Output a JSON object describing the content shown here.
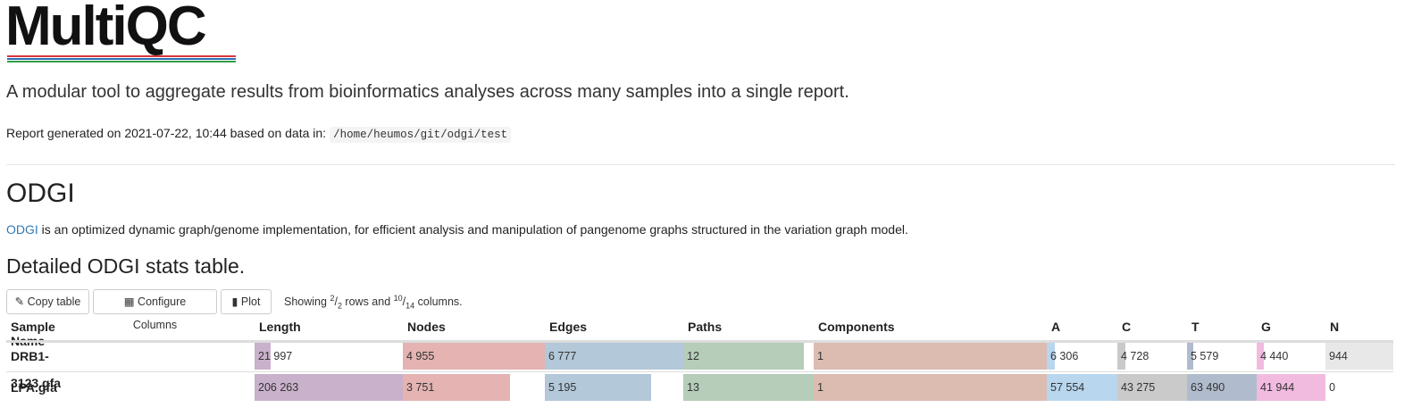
{
  "logo": "MultiQC",
  "intro": "A modular tool to aggregate results from bioinformatics analyses across many samples into a single report.",
  "report": {
    "prefix": "Report generated on 2021-07-22, 10:44 based on data in:",
    "path": "/home/heumos/git/odgi/test"
  },
  "section": {
    "title": "ODGI",
    "link": "ODGI",
    "description": " is an optimized dynamic graph/genome implementation, for efficient analysis and manipulation of pangenome graphs structured in the variation graph model.",
    "table_title": "Detailed ODGI stats table."
  },
  "toolbar": {
    "buttons": [
      "Copy table",
      "Configure Columns",
      "Plot"
    ],
    "showing": {
      "before": "Showing ",
      "rows_shown": "2",
      "rows_total": "2",
      "middle": " rows and ",
      "cols_shown": "10",
      "cols_total": "14",
      "after": " columns."
    }
  },
  "table": {
    "columns": [
      {
        "name": "Sample Name"
      },
      {
        "name": "Length",
        "color": "#c9b1cb"
      },
      {
        "name": "Nodes",
        "color": "#e4b3b2"
      },
      {
        "name": "Edges",
        "color": "#b3c8d9"
      },
      {
        "name": "Paths",
        "color": "#b5cdb9"
      },
      {
        "name": "Components",
        "color": "#dcbbb0"
      },
      {
        "name": "A",
        "color": "#b8d6ee"
      },
      {
        "name": "C",
        "color": "#cacaca"
      },
      {
        "name": "T",
        "color": "#b0bccd"
      },
      {
        "name": "G",
        "color": "#f1bbe0"
      },
      {
        "name": "N",
        "color": "#e8e8e8"
      }
    ],
    "rows": [
      {
        "name": "DRB1-3123.gfa",
        "cells": [
          {
            "value": 21997,
            "label": "21 997"
          },
          {
            "value": 4955,
            "label": "4 955"
          },
          {
            "value": 6777,
            "label": "6 777"
          },
          12,
          1,
          {
            "value": 6306,
            "label": "6 306"
          },
          {
            "value": 4728,
            "label": "4 728"
          },
          {
            "value": 5579,
            "label": "5 579"
          },
          {
            "value": 4440,
            "label": "4 440"
          },
          944
        ]
      },
      {
        "name": "LPA.gfa",
        "cells": [
          {
            "value": 206263,
            "label": "206 263"
          },
          {
            "value": 3751,
            "label": "3 751"
          },
          {
            "value": 5195,
            "label": "5 195"
          },
          13,
          1,
          {
            "value": 57554,
            "label": "57 554"
          },
          {
            "value": 43275,
            "label": "43 275"
          },
          {
            "value": 63490,
            "label": "63 490"
          },
          {
            "value": 41944,
            "label": "41 944"
          },
          0
        ]
      }
    ]
  }
}
